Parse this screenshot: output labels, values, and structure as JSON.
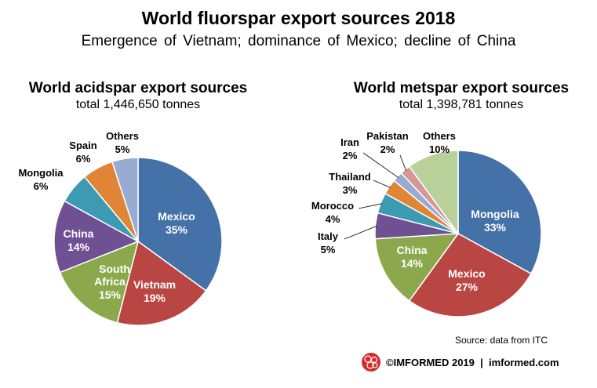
{
  "title": "World fluorspar export sources 2018",
  "subtitle": "Emergence of Vietnam; dominance of Mexico; decline of China",
  "chart_data": [
    {
      "type": "pie",
      "title": "World acidspar export sources",
      "subtitle": "total 1,446,650 tonnes",
      "slices": [
        {
          "name": "Mexico",
          "value": 35,
          "label": "35%",
          "color": "#4472a8",
          "label_position": "inside"
        },
        {
          "name": "Vietnam",
          "value": 19,
          "label": "19%",
          "color": "#b94643",
          "label_position": "inside"
        },
        {
          "name": "South Africa",
          "value": 15,
          "label": "15%",
          "color": "#8ba94c",
          "label_position": "inside"
        },
        {
          "name": "China",
          "value": 14,
          "label": "14%",
          "color": "#6f5193",
          "label_position": "inside"
        },
        {
          "name": "Mongolia",
          "value": 6,
          "label": "6%",
          "color": "#3c9ab3",
          "label_position": "outside"
        },
        {
          "name": "Spain",
          "value": 6,
          "label": "6%",
          "color": "#e08536",
          "label_position": "outside"
        },
        {
          "name": "Others",
          "value": 5,
          "label": "5%",
          "color": "#97abd3",
          "label_position": "outside"
        }
      ]
    },
    {
      "type": "pie",
      "title": "World metspar export sources",
      "subtitle": "total 1,398,781 tonnes",
      "slices": [
        {
          "name": "Mongolia",
          "value": 33,
          "label": "33%",
          "color": "#4472a8",
          "label_position": "inside"
        },
        {
          "name": "Mexico",
          "value": 27,
          "label": "27%",
          "color": "#b94643",
          "label_position": "inside"
        },
        {
          "name": "China",
          "value": 14,
          "label": "14%",
          "color": "#8ba94c",
          "label_position": "inside"
        },
        {
          "name": "Italy",
          "value": 5,
          "label": "5%",
          "color": "#6f5193",
          "label_position": "outside"
        },
        {
          "name": "Morocco",
          "value": 4,
          "label": "4%",
          "color": "#3c9ab3",
          "label_position": "outside"
        },
        {
          "name": "Thailand",
          "value": 3,
          "label": "3%",
          "color": "#e08536",
          "label_position": "outside"
        },
        {
          "name": "Iran",
          "value": 2,
          "label": "2%",
          "color": "#97abd3",
          "label_position": "outside"
        },
        {
          "name": "Pakistan",
          "value": 2,
          "label": "2%",
          "color": "#d59695",
          "label_position": "outside"
        },
        {
          "name": "Others",
          "value": 10,
          "label": "10%",
          "color": "#b8d09a",
          "label_position": "outside"
        }
      ]
    }
  ],
  "source": "Source: data from ITC",
  "brand": "©IMFORMED 2019  |  imformed.com"
}
